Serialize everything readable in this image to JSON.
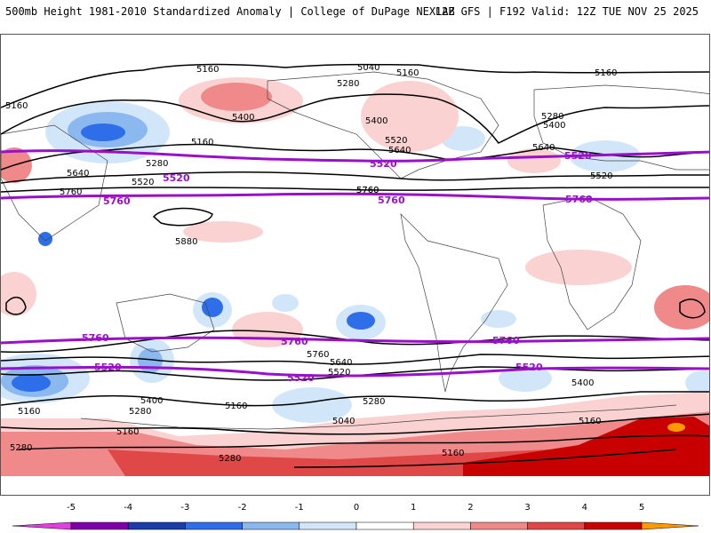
{
  "header": {
    "title_left": "500mb Height 1981-2010 Standardized Anomaly | College of DuPage NEXLAB",
    "title_right": "12Z GFS | F192 Valid: 12Z TUE NOV 25 2025"
  },
  "map": {
    "contour_labels_black": [
      "5160",
      "5040",
      "5160",
      "5160",
      "5280",
      "5400",
      "5520",
      "5640",
      "5760",
      "5880",
      "5160",
      "5400",
      "5520",
      "5640",
      "5760",
      "5280",
      "5400",
      "5520",
      "5640",
      "5760",
      "5160",
      "5280",
      "5400",
      "5040",
      "5160",
      "5280",
      "5160",
      "5280",
      "5400",
      "5520",
      "5640",
      "5760",
      "5160",
      "5160",
      "5280",
      "5280",
      "5160"
    ],
    "contour_labels_purple": [
      "5520",
      "5760",
      "5520",
      "5760",
      "5520",
      "5760",
      "5760",
      "5520",
      "5760",
      "5520",
      "5520",
      "5760"
    ]
  },
  "colorbar": {
    "ticks": [
      "-5",
      "-4",
      "-3",
      "-2",
      "-1",
      "0",
      "1",
      "2",
      "3",
      "4",
      "5"
    ],
    "colors": [
      "#e040e0",
      "#8000a8",
      "#1c3ca8",
      "#2e6ee8",
      "#8cb8f0",
      "#d2e6fa",
      "#ffffff",
      "#fad2d2",
      "#f08a8a",
      "#e04848",
      "#c80000",
      "#ff9900"
    ],
    "units": ""
  }
}
